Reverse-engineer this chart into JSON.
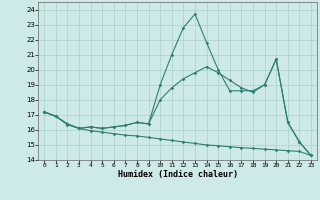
{
  "xlabel": "Humidex (Indice chaleur)",
  "ylabel": "",
  "bg_color": "#ceeae8",
  "grid_color": "#aacfcc",
  "line_color": "#2e7d72",
  "xlim": [
    -0.5,
    23.5
  ],
  "ylim": [
    14,
    24.5
  ],
  "yticks": [
    14,
    15,
    16,
    17,
    18,
    19,
    20,
    21,
    22,
    23,
    24
  ],
  "xticks": [
    0,
    1,
    2,
    3,
    4,
    5,
    6,
    7,
    8,
    9,
    10,
    11,
    12,
    13,
    14,
    15,
    16,
    17,
    18,
    19,
    20,
    21,
    22,
    23
  ],
  "line1_x": [
    0,
    1,
    2,
    3,
    4,
    5,
    6,
    7,
    8,
    9,
    10,
    11,
    12,
    13,
    14,
    15,
    16,
    17,
    18,
    19,
    20,
    21,
    22,
    23
  ],
  "line1_y": [
    17.2,
    16.9,
    16.4,
    16.1,
    16.2,
    16.1,
    16.2,
    16.3,
    16.5,
    16.4,
    19.0,
    21.0,
    22.8,
    23.7,
    21.8,
    20.0,
    18.6,
    18.6,
    18.6,
    19.0,
    20.7,
    16.5,
    15.2,
    14.3
  ],
  "line2_x": [
    0,
    1,
    2,
    3,
    4,
    5,
    6,
    7,
    8,
    9,
    10,
    11,
    12,
    13,
    14,
    15,
    16,
    17,
    18,
    19,
    20,
    21,
    22,
    23
  ],
  "line2_y": [
    17.2,
    16.9,
    16.4,
    16.1,
    16.2,
    16.1,
    16.2,
    16.3,
    16.5,
    16.4,
    18.0,
    18.8,
    19.4,
    19.8,
    20.2,
    19.8,
    19.3,
    18.8,
    18.5,
    19.0,
    20.7,
    16.5,
    15.2,
    14.3
  ],
  "line3_x": [
    0,
    1,
    2,
    3,
    4,
    5,
    6,
    7,
    8,
    9,
    10,
    11,
    12,
    13,
    14,
    15,
    16,
    17,
    18,
    19,
    20,
    21,
    22,
    23
  ],
  "line3_y": [
    17.2,
    16.9,
    16.35,
    16.1,
    15.95,
    15.85,
    15.75,
    15.65,
    15.6,
    15.5,
    15.4,
    15.3,
    15.2,
    15.1,
    15.0,
    14.95,
    14.88,
    14.82,
    14.77,
    14.72,
    14.67,
    14.62,
    14.57,
    14.3
  ]
}
